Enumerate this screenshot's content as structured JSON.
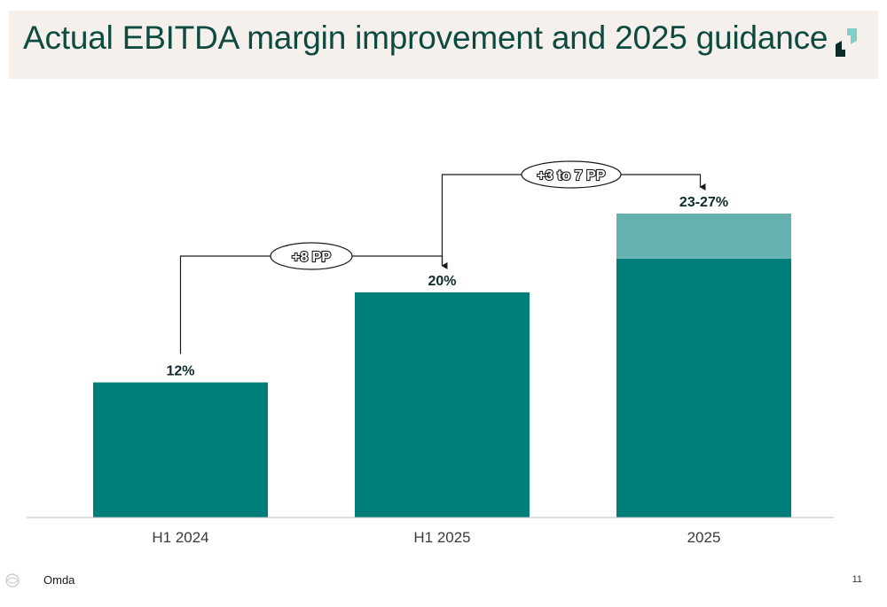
{
  "header": {
    "title": "Actual EBITDA margin improvement and 2025 guidance"
  },
  "footer": {
    "brand": "Omda",
    "page_number": "11"
  },
  "colors": {
    "bar": "#007e7a",
    "bar_range": "#66b2b1",
    "title": "#0d4a40",
    "title_band": "#f6f0ed"
  },
  "chart_data": {
    "type": "bar",
    "categories": [
      "H1 2024",
      "H1 2025",
      "2025"
    ],
    "values": [
      12,
      20,
      23
    ],
    "range_top": [
      null,
      null,
      27
    ],
    "data_labels": [
      "12%",
      "20%",
      "23-27%"
    ],
    "annotations": [
      {
        "text": "+8 PP",
        "from": "H1 2024",
        "to": "H1 2025"
      },
      {
        "text": "+3 to 7 PP",
        "from": "H1 2025",
        "to": "2025"
      }
    ],
    "title": "",
    "xlabel": "",
    "ylabel": "",
    "ylim": [
      0,
      27
    ],
    "grid": false,
    "legend": "none"
  }
}
